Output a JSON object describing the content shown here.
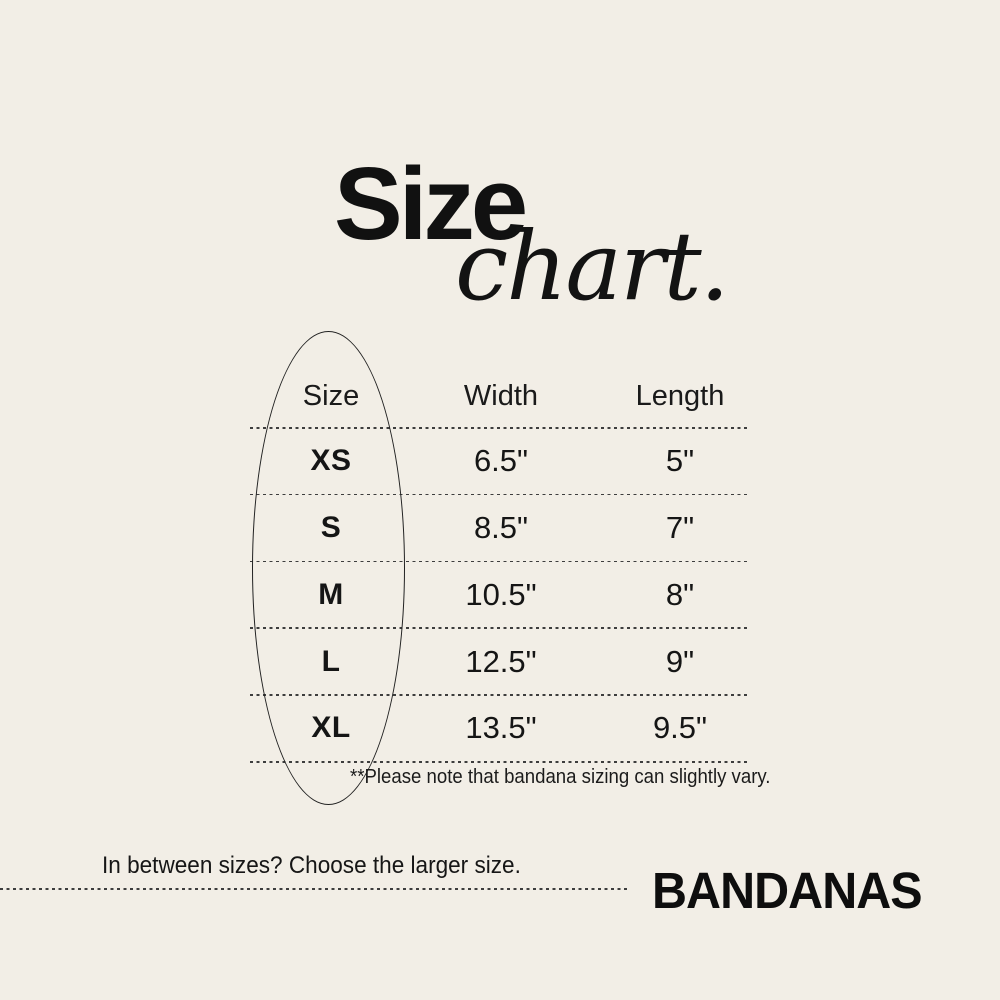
{
  "chart_data": {
    "type": "table",
    "title_main": "Size",
    "title_script": "chart.",
    "columns": [
      "Size",
      "Width",
      "Length"
    ],
    "rows": [
      [
        "XS",
        "6.5\"",
        "5\""
      ],
      [
        "S",
        "8.5\"",
        "7\""
      ],
      [
        "M",
        "10.5\"",
        "8\""
      ],
      [
        "L",
        "12.5\"",
        "9\""
      ],
      [
        "XL",
        "13.5\"",
        "9.5\""
      ]
    ],
    "note": "**Please note that bandana sizing can slightly vary.",
    "footer_tip": "In between sizes? Choose the larger size.",
    "brand": "BANDANAS",
    "annotation": "oval drawn around Size column",
    "layout_hints": {
      "separators": "dotted horizontal lines between rows",
      "grid": "rows only, no vertical lines",
      "alignment": "all columns centered"
    }
  },
  "colors": {
    "background": "#f2eee6",
    "ink": "#151515"
  }
}
